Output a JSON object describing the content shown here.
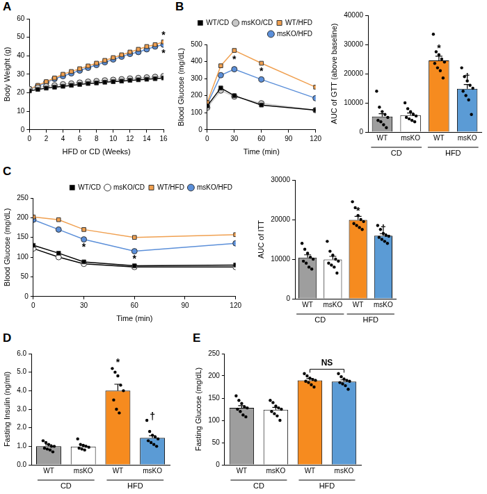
{
  "chart_data": [
    {
      "type": "line",
      "panel": "A",
      "x_label": "HFD or CD (Weeks)",
      "y_label": "Body Weight (g)",
      "x": [
        0,
        1,
        2,
        3,
        4,
        5,
        6,
        7,
        8,
        9,
        10,
        11,
        12,
        13,
        14,
        15,
        16
      ],
      "xlim": [
        0,
        16
      ],
      "xticks": [
        0,
        2,
        4,
        6,
        8,
        10,
        12,
        14,
        16
      ],
      "ylim": [
        0,
        60
      ],
      "yticks": [
        0,
        10,
        20,
        30,
        40,
        50,
        60
      ],
      "grid": false,
      "series": [
        {
          "name": "WT/CD",
          "color": "#000000",
          "marker": "square",
          "values": [
            21,
            21.8,
            22.5,
            23,
            23.5,
            24,
            24.5,
            25,
            25.3,
            25.7,
            26,
            26.3,
            26.7,
            27,
            27.3,
            27.6,
            28
          ]
        },
        {
          "name": "msKO/CD",
          "color": "#d0d0d0",
          "marker": "circle",
          "values": [
            22,
            22.8,
            23.5,
            24,
            24.6,
            25,
            25.5,
            26,
            26.3,
            26.7,
            27,
            27.3,
            27.7,
            28,
            28.3,
            28.6,
            29
          ]
        },
        {
          "name": "WT/HFD",
          "color": "#f0a050",
          "marker": "square",
          "values": [
            22,
            24,
            26,
            28,
            30,
            31.5,
            33,
            34.5,
            36,
            37.5,
            39,
            40.5,
            42,
            43.5,
            45,
            46,
            47.5
          ]
        },
        {
          "name": "msKO/HFD",
          "color": "#5b8fd9",
          "marker": "circle",
          "values": [
            22,
            23.5,
            25.5,
            27.5,
            29,
            30.5,
            32,
            33.5,
            35,
            36.5,
            38,
            39.5,
            41,
            42,
            43.5,
            45,
            46
          ]
        }
      ],
      "annotations": [
        {
          "text": "*",
          "x": 16,
          "y": 51
        },
        {
          "text": "*",
          "x": 16,
          "y": 41
        }
      ]
    },
    {
      "type": "line",
      "panel": "B",
      "x_label": "Time (min)",
      "y_label": "Blood Glucose (mg/dL)",
      "x": [
        0,
        15,
        30,
        60,
        120
      ],
      "xlim": [
        0,
        120
      ],
      "xticks": [
        0,
        30,
        60,
        90,
        120
      ],
      "ylim": [
        0,
        500
      ],
      "yticks": [
        0,
        100,
        200,
        300,
        400,
        500
      ],
      "grid": false,
      "legend": "top",
      "series": [
        {
          "name": "WT/CD",
          "color": "#000000",
          "marker": "square",
          "values": [
            140,
            245,
            200,
            145,
            115
          ]
        },
        {
          "name": "msKO/CD",
          "color": "#c8c8c8",
          "marker": "circle",
          "values": [
            130,
            230,
            195,
            155,
            115
          ]
        },
        {
          "name": "WT/HFD",
          "color": "#f0a050",
          "marker": "square",
          "values": [
            160,
            375,
            465,
            390,
            250
          ]
        },
        {
          "name": "msKO/HFD",
          "color": "#5b8fd9",
          "marker": "circle",
          "values": [
            150,
            320,
            355,
            295,
            185
          ]
        }
      ],
      "annotations": [
        {
          "text": "*",
          "x": 30,
          "y": 410
        },
        {
          "text": "*",
          "x": 60,
          "y": 340
        }
      ]
    },
    {
      "type": "bar",
      "y_label": "AUC of GTT (above baseline)",
      "categories": [
        "WT",
        "msKO",
        "WT",
        "msKO"
      ],
      "groups": [
        {
          "label": "CD",
          "span": 2
        },
        {
          "label": "HFD",
          "span": 2
        }
      ],
      "values": [
        5300,
        5800,
        24500,
        14800
      ],
      "errors": [
        1000,
        700,
        1500,
        1500
      ],
      "colors": [
        "#9e9e9e",
        "#ffffff",
        "#f68b1f",
        "#5b9bd5"
      ],
      "points": [
        [
          14000,
          8500,
          7000,
          6000,
          5000,
          4000,
          3500,
          2500,
          1500
        ],
        [
          10000,
          8000,
          7000,
          6000,
          5500,
          5000,
          4500,
          4000,
          3500
        ],
        [
          33500,
          27500,
          26500,
          25000,
          24000,
          23500,
          22000,
          21000,
          18500
        ],
        [
          22000,
          19000,
          17500,
          16000,
          15000,
          14000,
          12500,
          11000,
          6000
        ]
      ],
      "ylim": [
        0,
        40000
      ],
      "yticks": [
        0,
        10000,
        20000,
        30000,
        40000
      ],
      "grid": false,
      "annotations": [
        {
          "text": "*",
          "index": 2,
          "y": 28500
        },
        {
          "text": "†",
          "index": 3,
          "y": 18500
        }
      ]
    },
    {
      "type": "line",
      "panel": "C",
      "x_label": "Time (min)",
      "y_label": "Blood Glucose (mg/dL)",
      "x": [
        0,
        15,
        30,
        60,
        120
      ],
      "xlim": [
        0,
        120
      ],
      "xticks": [
        0,
        30,
        60,
        90,
        120
      ],
      "ylim": [
        0,
        250
      ],
      "yticks": [
        0,
        50,
        100,
        150,
        200,
        250
      ],
      "grid": false,
      "legend": "top",
      "series": [
        {
          "name": "WT/CD",
          "color": "#000000",
          "marker": "square",
          "values": [
            130,
            110,
            88,
            78,
            80
          ]
        },
        {
          "name": "msKO/CD",
          "color": "#ffffff",
          "marker": "circle",
          "values": [
            122,
            100,
            83,
            75,
            75
          ]
        },
        {
          "name": "WT/HFD",
          "color": "#f0a050",
          "marker": "square",
          "values": [
            202,
            195,
            170,
            150,
            157
          ]
        },
        {
          "name": "msKO/HFD",
          "color": "#5b8fd9",
          "marker": "circle",
          "values": [
            195,
            170,
            145,
            115,
            135
          ]
        }
      ],
      "annotations": [
        {
          "text": "*",
          "x": 30,
          "y": 125
        },
        {
          "text": "*",
          "x": 60,
          "y": 95
        }
      ]
    },
    {
      "type": "bar",
      "y_label": "AUC of ITT",
      "categories": [
        "WT",
        "msKO",
        "WT",
        "msKO"
      ],
      "groups": [
        {
          "label": "CD",
          "span": 2
        },
        {
          "label": "HFD",
          "span": 2
        }
      ],
      "values": [
        10400,
        9900,
        19900,
        15900
      ],
      "errors": [
        700,
        800,
        900,
        500
      ],
      "colors": [
        "#9e9e9e",
        "#ffffff",
        "#f68b1f",
        "#5b9bd5"
      ],
      "points": [
        [
          14000,
          12500,
          11500,
          10500,
          10000,
          9500,
          9000,
          8000,
          7500
        ],
        [
          14500,
          12000,
          11000,
          10000,
          9500,
          9000,
          8500,
          8000,
          6500
        ],
        [
          24500,
          23000,
          21000,
          20000,
          19500,
          19000,
          18500,
          18000,
          17500
        ],
        [
          18500,
          17500,
          16500,
          16000,
          15800,
          15500,
          15000,
          14500,
          14000
        ]
      ],
      "ylim": [
        0,
        30000
      ],
      "yticks": [
        0,
        10000,
        20000,
        30000
      ],
      "grid": false,
      "annotations": [
        {
          "text": "*",
          "index": 2,
          "y": 22000
        },
        {
          "text": "†",
          "index": 3,
          "y": 17600
        }
      ]
    },
    {
      "type": "bar",
      "panel": "D",
      "y_label": "Fasting Insulin (ng/ml)",
      "categories": [
        "WT",
        "msKO",
        "WT",
        "msKO"
      ],
      "groups": [
        {
          "label": "CD",
          "span": 2
        },
        {
          "label": "HFD",
          "span": 2
        }
      ],
      "values": [
        1.0,
        0.98,
        4.0,
        1.45
      ],
      "errors": [
        0.08,
        0.07,
        0.35,
        0.12
      ],
      "colors": [
        "#9e9e9e",
        "#ffffff",
        "#f68b1f",
        "#5b9bd5"
      ],
      "points": [
        [
          1.3,
          1.2,
          1.1,
          1.0,
          1.0,
          0.9,
          0.85,
          0.8,
          0.7
        ],
        [
          1.4,
          1.1,
          1.05,
          1.0,
          0.95,
          0.9,
          0.85,
          0.8
        ],
        [
          5.2,
          5.0,
          4.8,
          4.3,
          4.0,
          3.5,
          3.0,
          2.8
        ],
        [
          2.4,
          1.8,
          1.6,
          1.5,
          1.4,
          1.3,
          1.2,
          1.1,
          1.0
        ]
      ],
      "ylim": [
        0,
        6
      ],
      "yticks": [
        {
          "value": 0,
          "label": "0.0"
        },
        {
          "value": 1,
          "label": "1.0"
        },
        {
          "value": 2,
          "label": "2.0"
        },
        {
          "value": 3,
          "label": "3.0"
        },
        {
          "value": 4,
          "label": "4.0"
        },
        {
          "value": 5,
          "label": "5.0"
        },
        {
          "value": 6,
          "label": "6.0"
        }
      ],
      "grid": false,
      "annotations": [
        {
          "text": "*",
          "index": 2,
          "y": 5.5
        },
        {
          "text": "†",
          "index": 3,
          "y": 2.6
        }
      ]
    },
    {
      "type": "bar",
      "panel": "E",
      "y_label": "Fasting Glucose (mg/dL)",
      "categories": [
        "WT",
        "msKO",
        "WT",
        "msKO"
      ],
      "groups": [
        {
          "label": "CD",
          "span": 2
        },
        {
          "label": "HFD",
          "span": 2
        }
      ],
      "values": [
        128,
        124,
        190,
        187
      ],
      "errors": [
        5,
        5,
        4,
        4
      ],
      "colors": [
        "#9e9e9e",
        "#ffffff",
        "#f68b1f",
        "#5b9bd5"
      ],
      "points": [
        [
          155,
          145,
          138,
          130,
          128,
          125,
          120,
          112,
          108
        ],
        [
          145,
          140,
          132,
          128,
          125,
          120,
          115,
          110,
          100
        ],
        [
          205,
          200,
          195,
          192,
          190,
          188,
          185,
          180,
          175
        ],
        [
          205,
          198,
          193,
          190,
          188,
          185,
          182,
          178,
          170
        ]
      ],
      "ylim": [
        0,
        250
      ],
      "yticks": [
        0,
        50,
        100,
        150,
        200,
        250
      ],
      "grid": false,
      "annotations": [
        {
          "text": "NS",
          "from": 2,
          "to": 3,
          "y": 215
        }
      ]
    }
  ]
}
